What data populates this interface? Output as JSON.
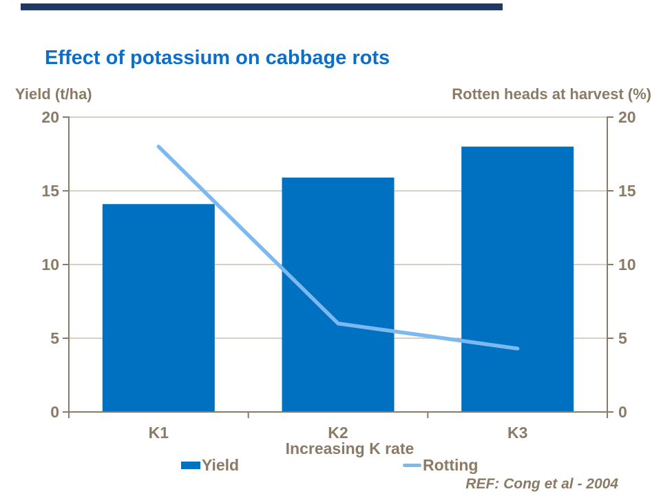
{
  "slide": {
    "title": "Effect of potassium on cabbage rots",
    "reference": "REF: Cong et al - 2004"
  },
  "colors": {
    "accent_bar": "#1F3864",
    "title": "#0D6EC8",
    "bar": "#0070C0",
    "line": "#7CB9F0",
    "text_brown": "#8A7A66",
    "gridline": "#C9BFB1",
    "axis": "#8A7A66"
  },
  "chart_data": {
    "type": "bar",
    "subtype": "bar+line combo, dual axis",
    "categories": [
      "K1",
      "K2",
      "K3"
    ],
    "series": [
      {
        "name": "Yield",
        "type": "bar",
        "axis": "left",
        "values": [
          14.1,
          15.9,
          18
        ]
      },
      {
        "name": "Rotting",
        "type": "line",
        "axis": "right",
        "values": [
          18,
          6,
          4.3
        ]
      }
    ],
    "title": "Effect of potassium on cabbage rots",
    "xlabel": "Increasing K rate",
    "left_ylabel": "Yield (t/ha)",
    "right_ylabel": "Rotten heads at harvest (%)",
    "ylim": [
      0,
      20
    ],
    "yticks": [
      0,
      5,
      10,
      15,
      20
    ],
    "grid": true,
    "legend_position": "bottom"
  },
  "legend": {
    "items": [
      {
        "label": "Yield",
        "swatch": "bar-swatch"
      },
      {
        "label": "Rotting",
        "swatch": "line-swatch"
      }
    ]
  }
}
